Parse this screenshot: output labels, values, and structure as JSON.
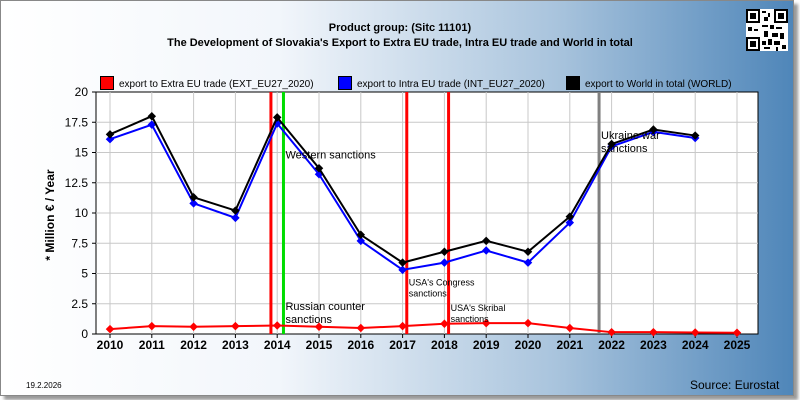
{
  "header": {
    "title_line1": "Product group:  (Sitc 11101)",
    "title_line2": "The Development of Slovakia's Export to Extra EU trade, Intra EU trade and World in total"
  },
  "qr_icon": "qr-code-icon",
  "footer": {
    "date": "19.2.2026",
    "source": "Source: Eurostat"
  },
  "chart_data": {
    "type": "line",
    "ylabel": "* Million € / Year",
    "ylim": [
      0,
      20
    ],
    "yticks": [
      "0",
      "2.5",
      "5",
      "7.5",
      "10",
      "12.5",
      "15",
      "17.5",
      "20"
    ],
    "x": [
      "2010",
      "2011",
      "2012",
      "2013",
      "2014",
      "2015",
      "2016",
      "2017",
      "2018",
      "2019",
      "2020",
      "2021",
      "2022",
      "2023",
      "2024",
      "2025"
    ],
    "series": [
      {
        "name": "export to Extra EU trade (EXT_EU27_2020)",
        "color": "#ff0000",
        "values": [
          0.4,
          0.65,
          0.6,
          0.65,
          0.7,
          0.6,
          0.5,
          0.65,
          0.85,
          0.9,
          0.9,
          0.5,
          0.15,
          0.15,
          0.12,
          0.1
        ]
      },
      {
        "name": "export to Intra EU trade (INT_EU27_2020)",
        "color": "#0000ff",
        "values": [
          16.1,
          17.3,
          10.8,
          9.6,
          17.4,
          13.2,
          7.7,
          5.3,
          5.9,
          6.9,
          5.9,
          9.2,
          15.5,
          16.7,
          16.2,
          null
        ]
      },
      {
        "name": "export to World in total (WORLD)",
        "color": "#000000",
        "values": [
          16.5,
          18.0,
          11.3,
          10.2,
          17.9,
          13.7,
          8.2,
          5.9,
          6.8,
          7.7,
          6.8,
          9.7,
          15.7,
          16.9,
          16.4,
          null
        ]
      }
    ],
    "annotations": [
      {
        "label": "",
        "position": 2013.85,
        "color": "#ff0000",
        "text_y": null
      },
      {
        "label": "Western sanctions",
        "position": 2014.15,
        "color": "#00dd00",
        "text_y": 14.5
      },
      {
        "label": "Russian counter sanctions",
        "position": 2014.15,
        "color": "#00dd00",
        "text_y": 2.0
      },
      {
        "label": "USA's Congress sanctions",
        "position": 2017.1,
        "color": "#ff0000",
        "text_y": 4.0
      },
      {
        "label": "USA's Skribal sanctions",
        "position": 2018.1,
        "color": "#ff0000",
        "text_y": 1.9
      },
      {
        "label": "Ukraine war sanctions",
        "position": 2021.7,
        "color": "#808080",
        "text_y": 16.1
      }
    ]
  }
}
